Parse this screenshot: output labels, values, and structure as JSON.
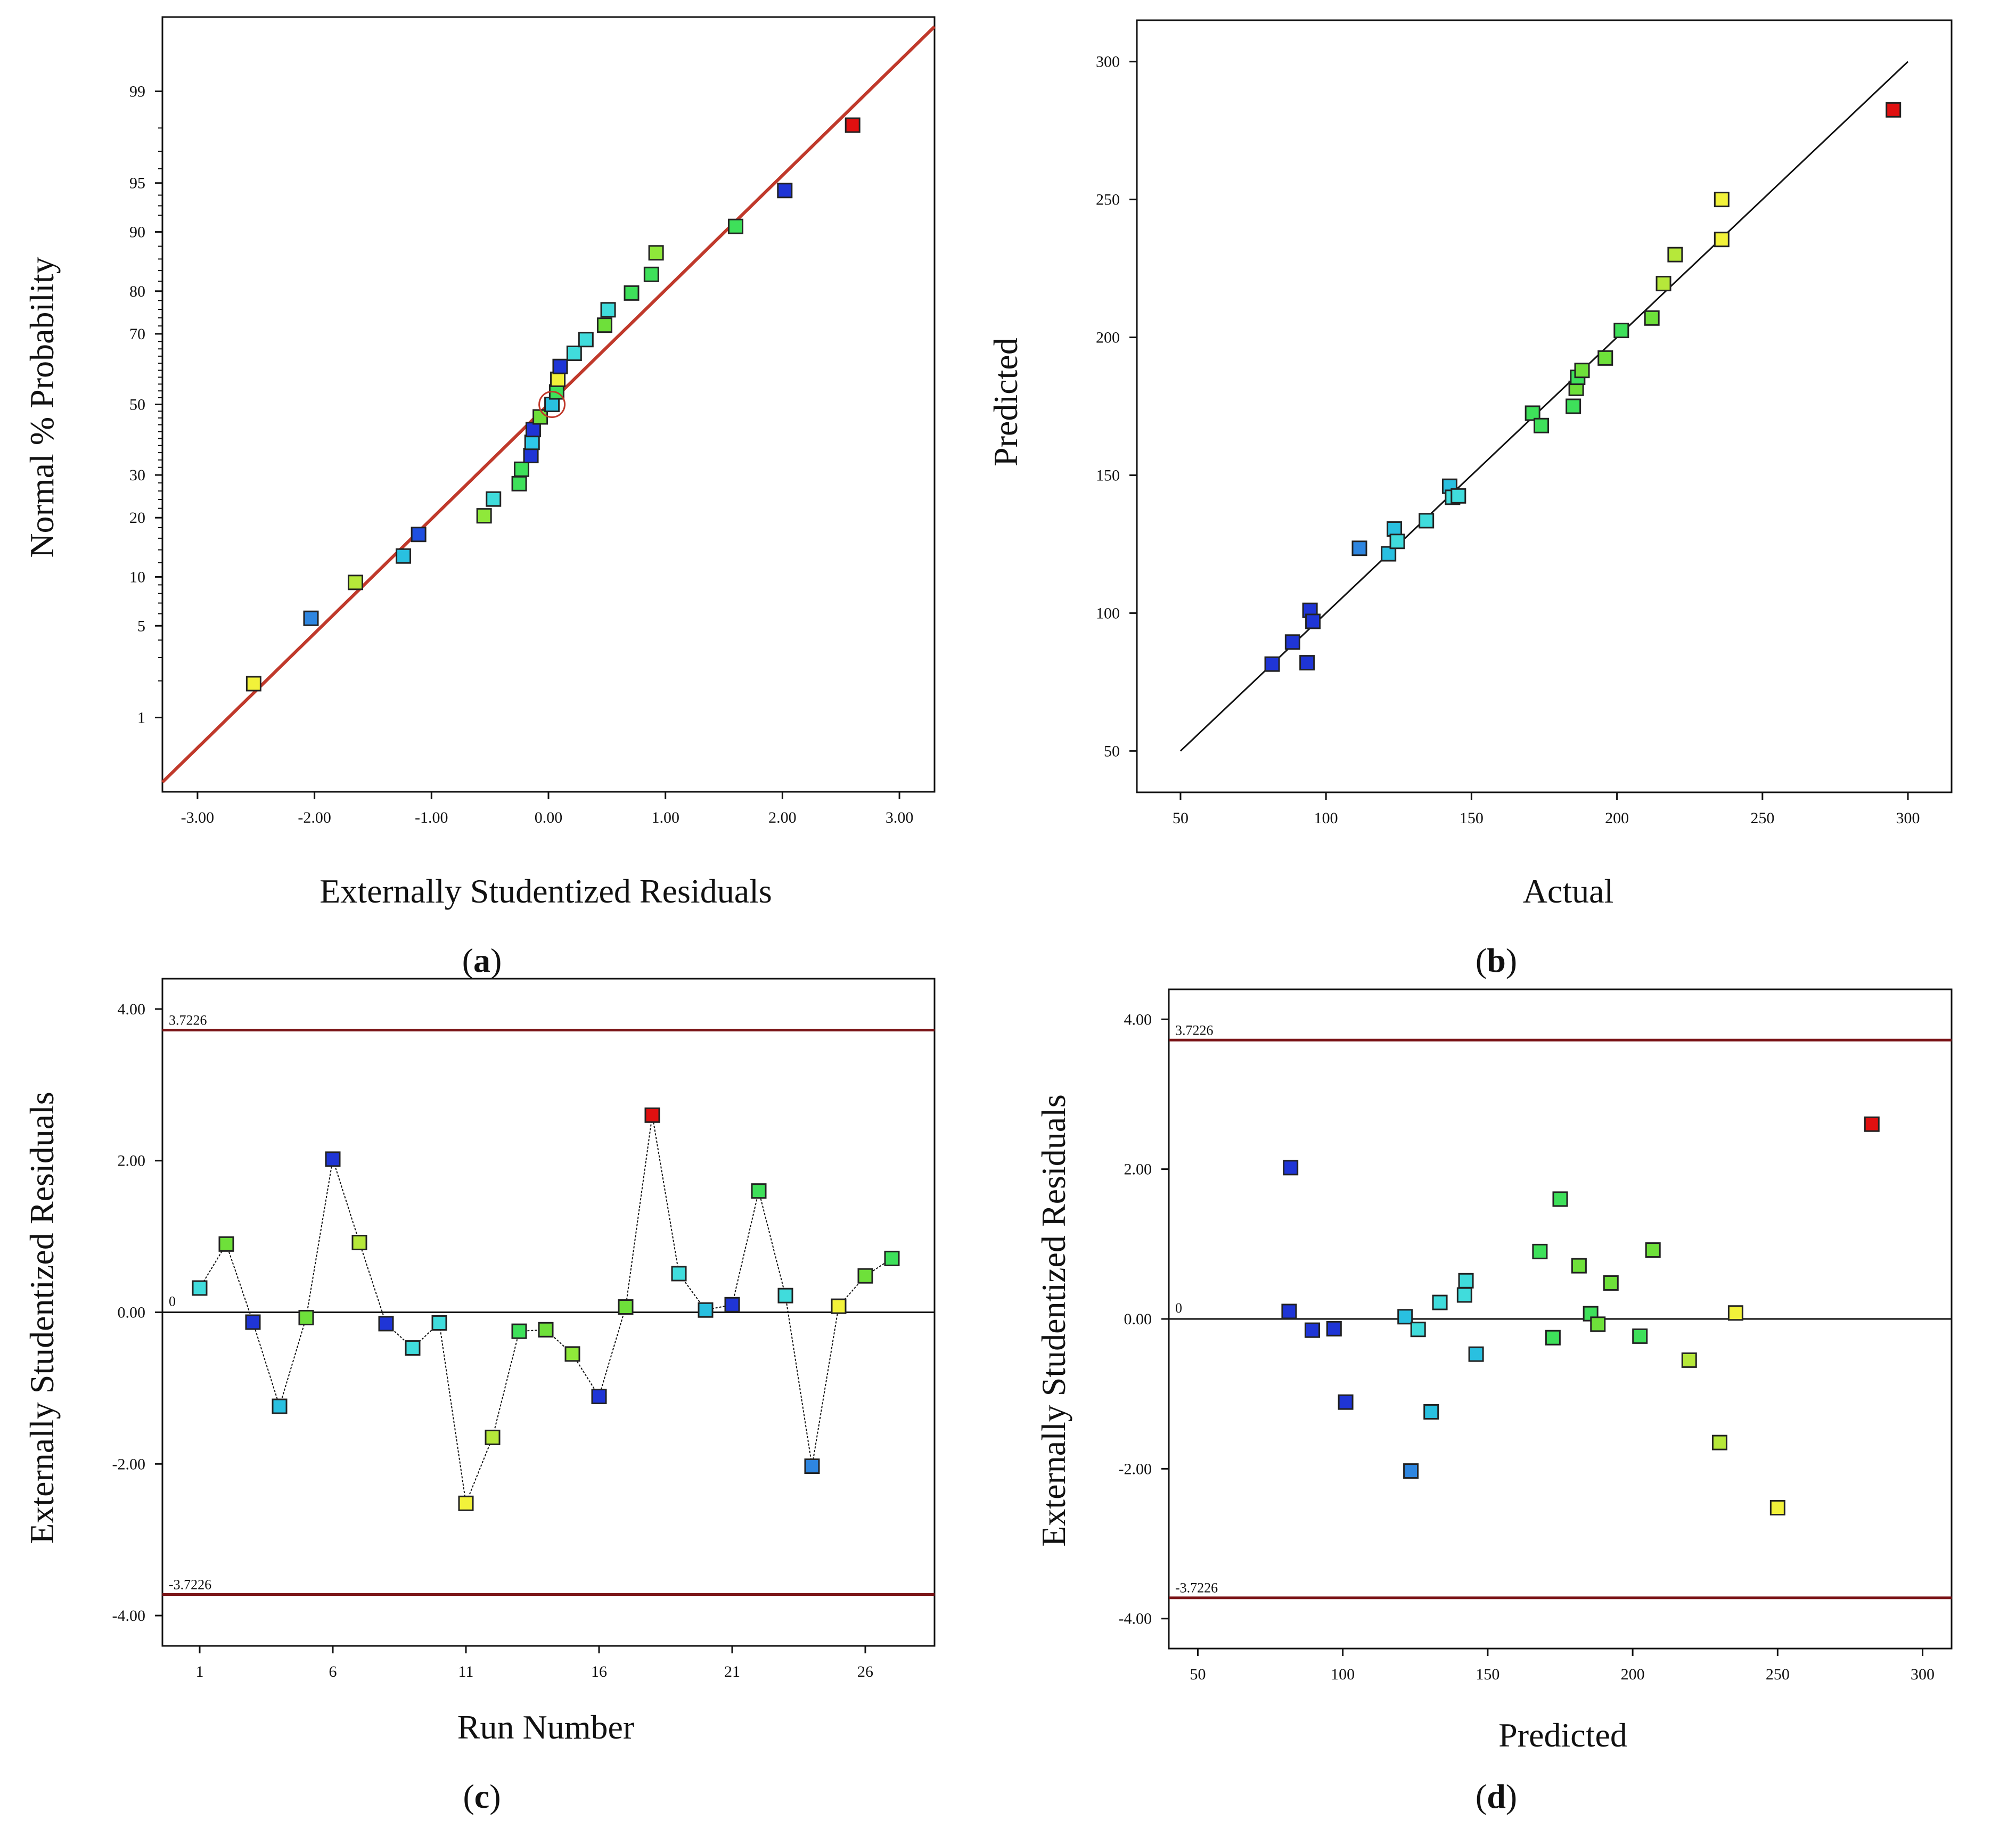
{
  "colors": {
    "fit_line": "#c0392b",
    "limit_line": "#7b1518",
    "axis": "#111111",
    "marker_outline": "#222222"
  },
  "chart_data": [
    {
      "id": "a",
      "type": "scatter",
      "panel_label": "a",
      "xlabel": "Externally Studentized Residuals",
      "ylabel": "Normal % Probability",
      "xlim": [
        -3.3,
        3.3
      ],
      "x_ticks": [
        -3,
        -2,
        -1,
        0,
        1,
        2,
        3
      ],
      "x_tick_labels": [
        "-3.00",
        "-2.00",
        "-1.00",
        "0.00",
        "1.00",
        "2.00",
        "3.00"
      ],
      "y_scale": "normal-probability",
      "ylim_percent": [
        0.2,
        99.8
      ],
      "y_ticks": [
        1,
        5,
        10,
        20,
        30,
        50,
        70,
        80,
        90,
        95,
        99
      ],
      "y_tick_labels": [
        "1",
        "5",
        "10",
        "20",
        "30",
        "50",
        "70",
        "80",
        "90",
        "95",
        "99"
      ],
      "fit_line": {
        "from": [
          -3.3,
          0.25
        ],
        "to": [
          3.3,
          99.75
        ]
      },
      "points": [
        {
          "x": -2.52,
          "y": 1.9,
          "color": "#f2f23a"
        },
        {
          "x": -2.03,
          "y": 5.6,
          "color": "#2e86e0"
        },
        {
          "x": -1.65,
          "y": 9.3,
          "color": "#b6e83a"
        },
        {
          "x": -1.24,
          "y": 13.0,
          "color": "#29c0e0"
        },
        {
          "x": -1.11,
          "y": 16.7,
          "color": "#1f4fe0"
        },
        {
          "x": -0.55,
          "y": 20.4,
          "color": "#8fe83a"
        },
        {
          "x": -0.47,
          "y": 24.1,
          "color": "#40dcdc"
        },
        {
          "x": -0.25,
          "y": 27.8,
          "color": "#3ee05a"
        },
        {
          "x": -0.23,
          "y": 31.5,
          "color": "#3ee05a"
        },
        {
          "x": -0.15,
          "y": 35.2,
          "color": "#1f35d6"
        },
        {
          "x": -0.14,
          "y": 38.9,
          "color": "#2ec8e8"
        },
        {
          "x": -0.13,
          "y": 42.6,
          "color": "#1f35d6"
        },
        {
          "x": -0.07,
          "y": 46.3,
          "color": "#6ee03a"
        },
        {
          "x": 0.03,
          "y": 50.0,
          "color": "#29c0e0"
        },
        {
          "x": 0.07,
          "y": 53.7,
          "color": "#3ee05a"
        },
        {
          "x": 0.08,
          "y": 57.4,
          "color": "#f2f23a"
        },
        {
          "x": 0.1,
          "y": 61.1,
          "color": "#1f35d6"
        },
        {
          "x": 0.22,
          "y": 64.8,
          "color": "#40dcdc"
        },
        {
          "x": 0.32,
          "y": 68.5,
          "color": "#40dcdc"
        },
        {
          "x": 0.48,
          "y": 72.2,
          "color": "#6ee03a"
        },
        {
          "x": 0.51,
          "y": 75.9,
          "color": "#40dcdc"
        },
        {
          "x": 0.71,
          "y": 79.6,
          "color": "#3ee05a"
        },
        {
          "x": 0.88,
          "y": 83.3,
          "color": "#3ee05a"
        },
        {
          "x": 0.92,
          "y": 87.0,
          "color": "#8fe83a"
        },
        {
          "x": 1.6,
          "y": 90.7,
          "color": "#3ee05a"
        },
        {
          "x": 2.02,
          "y": 94.4,
          "color": "#1f35d6"
        },
        {
          "x": 2.6,
          "y": 98.1,
          "color": "#e01010"
        }
      ],
      "circled_point_index": 13
    },
    {
      "id": "b",
      "type": "scatter",
      "panel_label": "b",
      "xlabel": "Actual",
      "ylabel": "Predicted",
      "xlim": [
        35,
        315
      ],
      "ylim": [
        35,
        315
      ],
      "x_ticks": [
        50,
        100,
        150,
        200,
        250,
        300
      ],
      "x_tick_labels": [
        "50",
        "100",
        "150",
        "200",
        "250",
        "300"
      ],
      "y_ticks": [
        50,
        100,
        150,
        200,
        250,
        300
      ],
      "y_tick_labels": [
        "50",
        "100",
        "150",
        "200",
        "250",
        "300"
      ],
      "ref_line": {
        "from": [
          50,
          50
        ],
        "to": [
          300,
          300
        ]
      },
      "points": [
        {
          "x": 81.5,
          "y": 81.5,
          "color": "#1f35d6"
        },
        {
          "x": 93.5,
          "y": 82.0,
          "color": "#1f35d6"
        },
        {
          "x": 88.5,
          "y": 89.5,
          "color": "#1f35d6"
        },
        {
          "x": 94.5,
          "y": 101.0,
          "color": "#1f35d6"
        },
        {
          "x": 95.5,
          "y": 97.0,
          "color": "#1f35d6"
        },
        {
          "x": 111.5,
          "y": 123.5,
          "color": "#2e86e0"
        },
        {
          "x": 121.5,
          "y": 121.5,
          "color": "#29c0e0"
        },
        {
          "x": 123.5,
          "y": 130.5,
          "color": "#29c0e0"
        },
        {
          "x": 124.5,
          "y": 126.0,
          "color": "#40dcdc"
        },
        {
          "x": 134.5,
          "y": 133.5,
          "color": "#40dcdc"
        },
        {
          "x": 142.5,
          "y": 146.0,
          "color": "#29c0e0"
        },
        {
          "x": 143.5,
          "y": 142.0,
          "color": "#40dcdc"
        },
        {
          "x": 145.5,
          "y": 142.5,
          "color": "#40dcdc"
        },
        {
          "x": 171.0,
          "y": 172.5,
          "color": "#3ee05a"
        },
        {
          "x": 174.0,
          "y": 168.0,
          "color": "#3ee05a"
        },
        {
          "x": 185.0,
          "y": 175.0,
          "color": "#3ee05a"
        },
        {
          "x": 186.0,
          "y": 181.5,
          "color": "#6ee03a"
        },
        {
          "x": 186.5,
          "y": 185.5,
          "color": "#3ee05a"
        },
        {
          "x": 188.0,
          "y": 188.0,
          "color": "#6ee03a"
        },
        {
          "x": 196.0,
          "y": 192.5,
          "color": "#6ee03a"
        },
        {
          "x": 201.5,
          "y": 202.5,
          "color": "#3ee05a"
        },
        {
          "x": 212.0,
          "y": 207.0,
          "color": "#6ee03a"
        },
        {
          "x": 216.0,
          "y": 219.5,
          "color": "#b6e83a"
        },
        {
          "x": 220.0,
          "y": 230.0,
          "color": "#b6e83a"
        },
        {
          "x": 236.0,
          "y": 235.5,
          "color": "#f2f23a"
        },
        {
          "x": 236.0,
          "y": 250.0,
          "color": "#f2f23a"
        },
        {
          "x": 295.0,
          "y": 282.5,
          "color": "#e01010"
        }
      ]
    },
    {
      "id": "c",
      "type": "line",
      "panel_label": "c",
      "xlabel": "Run Number",
      "ylabel": "Externally Studentized Residuals",
      "xlim": [
        -0.4,
        28.6
      ],
      "ylim": [
        -4.4,
        4.4
      ],
      "x_ticks": [
        1,
        6,
        11,
        16,
        21,
        26
      ],
      "x_tick_labels": [
        "1",
        "6",
        "11",
        "16",
        "21",
        "26"
      ],
      "y_ticks": [
        -4,
        -2,
        0,
        2,
        4
      ],
      "y_tick_labels": [
        "-4.00",
        "-2.00",
        "0.00",
        "2.00",
        "4.00"
      ],
      "limits": [
        {
          "value": 3.7226,
          "label": "3.7226"
        },
        {
          "value": -3.7226,
          "label": "-3.7226"
        }
      ],
      "zero_line": {
        "value": 0,
        "label": "0"
      },
      "points": [
        {
          "x": 1,
          "y": 0.32,
          "color": "#40dcdc"
        },
        {
          "x": 2,
          "y": 0.9,
          "color": "#6ee03a"
        },
        {
          "x": 3,
          "y": -0.13,
          "color": "#1f35d6"
        },
        {
          "x": 4,
          "y": -1.24,
          "color": "#29c0e0"
        },
        {
          "x": 5,
          "y": -0.07,
          "color": "#6ee03a"
        },
        {
          "x": 6,
          "y": 2.02,
          "color": "#1f35d6"
        },
        {
          "x": 7,
          "y": 0.92,
          "color": "#b6e83a"
        },
        {
          "x": 8,
          "y": -0.15,
          "color": "#1f35d6"
        },
        {
          "x": 9,
          "y": -0.47,
          "color": "#40dcdc"
        },
        {
          "x": 10,
          "y": -0.14,
          "color": "#40dcdc"
        },
        {
          "x": 11,
          "y": -2.52,
          "color": "#f2f23a"
        },
        {
          "x": 12,
          "y": -1.65,
          "color": "#b6e83a"
        },
        {
          "x": 13,
          "y": -0.25,
          "color": "#3ee05a"
        },
        {
          "x": 14,
          "y": -0.23,
          "color": "#6ee03a"
        },
        {
          "x": 15,
          "y": -0.55,
          "color": "#8fe83a"
        },
        {
          "x": 16,
          "y": -1.11,
          "color": "#1f35d6"
        },
        {
          "x": 17,
          "y": 0.07,
          "color": "#6ee03a"
        },
        {
          "x": 18,
          "y": 2.6,
          "color": "#e01010"
        },
        {
          "x": 19,
          "y": 0.51,
          "color": "#40dcdc"
        },
        {
          "x": 20,
          "y": 0.03,
          "color": "#29c0e0"
        },
        {
          "x": 21,
          "y": 0.1,
          "color": "#1f35d6"
        },
        {
          "x": 22,
          "y": 1.6,
          "color": "#3ee05a"
        },
        {
          "x": 23,
          "y": 0.22,
          "color": "#40dcdc"
        },
        {
          "x": 24,
          "y": -2.03,
          "color": "#2e86e0"
        },
        {
          "x": 25,
          "y": 0.08,
          "color": "#f2f23a"
        },
        {
          "x": 26,
          "y": 0.48,
          "color": "#6ee03a"
        },
        {
          "x": 27,
          "y": 0.71,
          "color": "#3ee05a"
        }
      ]
    },
    {
      "id": "d",
      "type": "scatter",
      "panel_label": "d",
      "xlabel": "Predicted",
      "ylabel": "Externally Studentized Residuals",
      "xlim": [
        40,
        310
      ],
      "ylim": [
        -4.4,
        4.4
      ],
      "x_ticks": [
        50,
        100,
        150,
        200,
        250,
        300
      ],
      "x_tick_labels": [
        "50",
        "100",
        "150",
        "200",
        "250",
        "300"
      ],
      "y_ticks": [
        -4,
        -2,
        0,
        2,
        4
      ],
      "y_tick_labels": [
        "-4.00",
        "-2.00",
        "0.00",
        "2.00",
        "4.00"
      ],
      "limits": [
        {
          "value": 3.7226,
          "label": "3.7226"
        },
        {
          "value": -3.7226,
          "label": "-3.7226"
        }
      ],
      "zero_line": {
        "value": 0,
        "label": "0"
      },
      "points": [
        {
          "x": 82,
          "y": 2.02,
          "color": "#1f35d6"
        },
        {
          "x": 81.5,
          "y": 0.1,
          "color": "#1f35d6"
        },
        {
          "x": 89.5,
          "y": -0.15,
          "color": "#1f35d6"
        },
        {
          "x": 97,
          "y": -0.13,
          "color": "#1f35d6"
        },
        {
          "x": 101,
          "y": -1.11,
          "color": "#1f35d6"
        },
        {
          "x": 121.5,
          "y": 0.03,
          "color": "#29c0e0"
        },
        {
          "x": 123.5,
          "y": -2.03,
          "color": "#2e86e0"
        },
        {
          "x": 126,
          "y": -0.14,
          "color": "#40dcdc"
        },
        {
          "x": 130.5,
          "y": -1.24,
          "color": "#29c0e0"
        },
        {
          "x": 133.5,
          "y": 0.22,
          "color": "#40dcdc"
        },
        {
          "x": 142,
          "y": 0.32,
          "color": "#40dcdc"
        },
        {
          "x": 142.5,
          "y": 0.51,
          "color": "#40dcdc"
        },
        {
          "x": 146,
          "y": -0.47,
          "color": "#29c0e0"
        },
        {
          "x": 168,
          "y": 0.9,
          "color": "#3ee05a"
        },
        {
          "x": 172.5,
          "y": -0.25,
          "color": "#3ee05a"
        },
        {
          "x": 175,
          "y": 1.6,
          "color": "#3ee05a"
        },
        {
          "x": 181.5,
          "y": 0.71,
          "color": "#6ee03a"
        },
        {
          "x": 185.5,
          "y": 0.07,
          "color": "#3ee05a"
        },
        {
          "x": 188,
          "y": -0.07,
          "color": "#6ee03a"
        },
        {
          "x": 192.5,
          "y": 0.48,
          "color": "#6ee03a"
        },
        {
          "x": 202.5,
          "y": -0.23,
          "color": "#3ee05a"
        },
        {
          "x": 207,
          "y": 0.92,
          "color": "#6ee03a"
        },
        {
          "x": 219.5,
          "y": -0.55,
          "color": "#b6e83a"
        },
        {
          "x": 230,
          "y": -1.65,
          "color": "#b6e83a"
        },
        {
          "x": 235.5,
          "y": 0.08,
          "color": "#f2f23a"
        },
        {
          "x": 250,
          "y": -2.52,
          "color": "#f2f23a"
        },
        {
          "x": 282.5,
          "y": 2.6,
          "color": "#e01010"
        }
      ]
    }
  ]
}
